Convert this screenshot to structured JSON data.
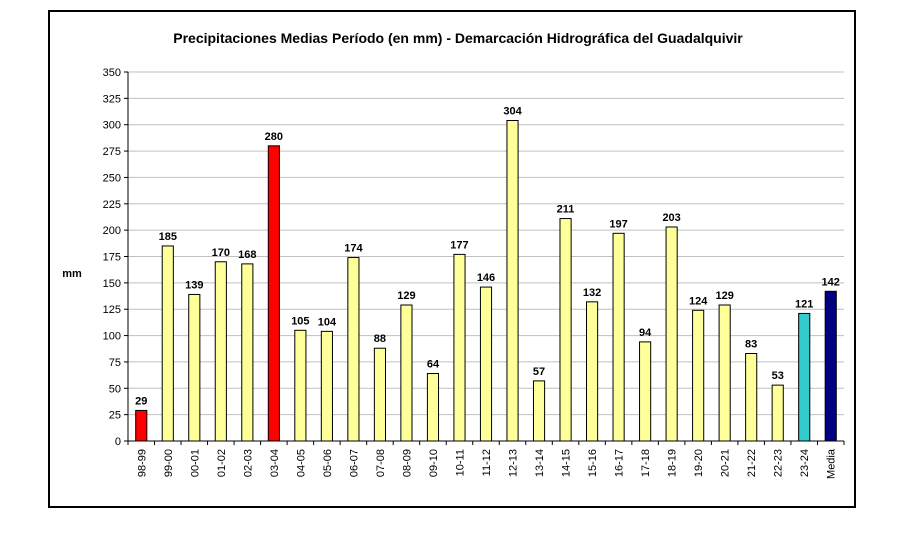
{
  "chart_data": {
    "type": "bar",
    "title": "Precipitaciones Medias Período (en mm) - Demarcación Hidrográfica del Guadalquivir",
    "xlabel": "",
    "ylabel": "mm",
    "ylim": [
      0,
      350
    ],
    "ytick_step": 25,
    "grid": true,
    "legend": "none",
    "categories": [
      "98-99",
      "99-00",
      "00-01",
      "01-02",
      "02-03",
      "03-04",
      "04-05",
      "05-06",
      "06-07",
      "07-08",
      "08-09",
      "09-10",
      "10-11",
      "11-12",
      "12-13",
      "13-14",
      "14-15",
      "15-16",
      "16-17",
      "17-18",
      "18-19",
      "19-20",
      "20-21",
      "21-22",
      "22-23",
      "23-24",
      "Media"
    ],
    "values": [
      29,
      185,
      139,
      170,
      168,
      280,
      105,
      104,
      174,
      88,
      129,
      64,
      177,
      146,
      304,
      57,
      211,
      132,
      197,
      94,
      203,
      124,
      129,
      83,
      53,
      121,
      142
    ],
    "bar_colors": [
      "#ff0000",
      "#ffff99",
      "#ffff99",
      "#ffff99",
      "#ffff99",
      "#ff0000",
      "#ffff99",
      "#ffff99",
      "#ffff99",
      "#ffff99",
      "#ffff99",
      "#ffff99",
      "#ffff99",
      "#ffff99",
      "#ffff99",
      "#ffff99",
      "#ffff99",
      "#ffff99",
      "#ffff99",
      "#ffff99",
      "#ffff99",
      "#ffff99",
      "#ffff99",
      "#ffff99",
      "#ffff99",
      "#33cccc",
      "#000080"
    ],
    "grid_color": "#c0c0c0",
    "bar_stroke": "#000000"
  }
}
